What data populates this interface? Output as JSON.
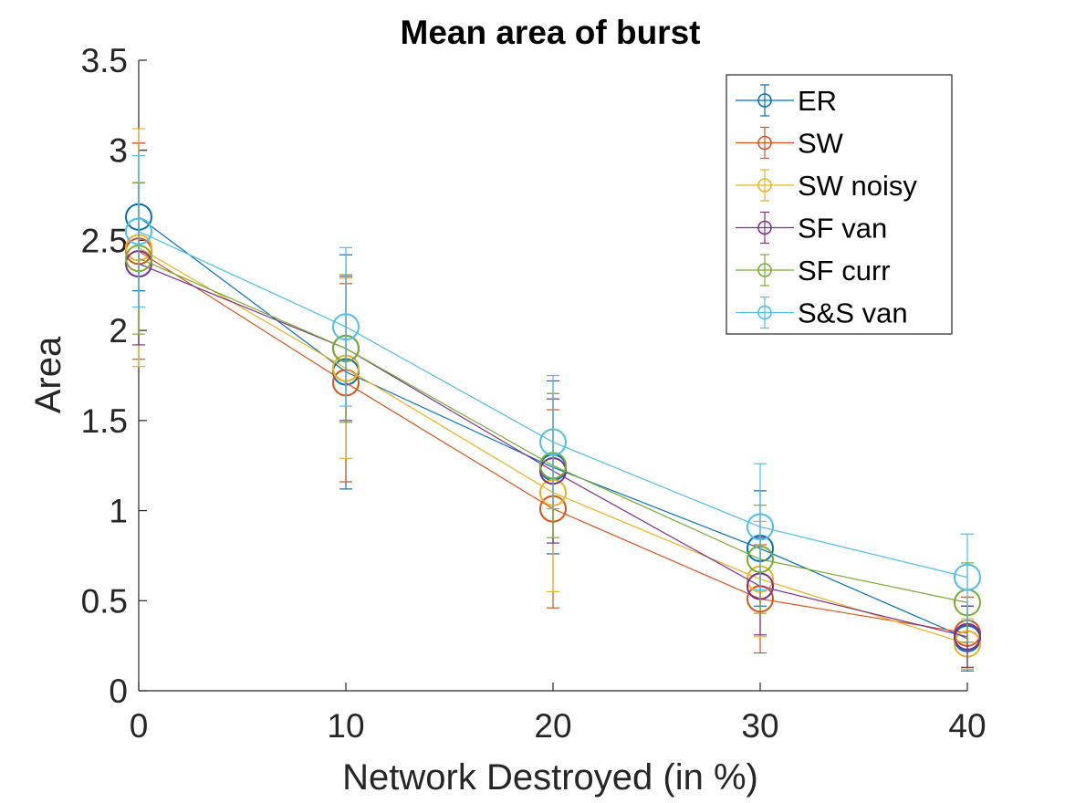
{
  "chart_data": {
    "type": "line",
    "title": "Mean area of burst",
    "xlabel": "Network Destroyed (in %)",
    "ylabel": "Area",
    "xlim": [
      0,
      40
    ],
    "ylim": [
      0,
      3.5
    ],
    "x": [
      0,
      10,
      20,
      30,
      40
    ],
    "xticks": [
      "0",
      "10",
      "20",
      "30",
      "40"
    ],
    "yticks": [
      "0",
      "0.5",
      "1",
      "1.5",
      "2",
      "2.5",
      "3",
      "3.5"
    ],
    "grid": false,
    "legend_position": "top-right",
    "marker": "circle",
    "error_bars": true,
    "series": [
      {
        "name": "ER",
        "color": "#0072BD",
        "values": [
          2.63,
          1.77,
          1.24,
          0.79,
          0.29
        ],
        "errors": [
          0.41,
          0.65,
          0.48,
          0.32,
          0.18
        ]
      },
      {
        "name": "SW",
        "color": "#D95319",
        "values": [
          2.44,
          1.71,
          1.01,
          0.51,
          0.32
        ],
        "errors": [
          0.6,
          0.55,
          0.55,
          0.3,
          0.2
        ]
      },
      {
        "name": "SW noisy",
        "color": "#EDB120",
        "values": [
          2.46,
          1.79,
          1.1,
          0.62,
          0.26
        ],
        "errors": [
          0.66,
          0.5,
          0.55,
          0.32,
          0.14
        ]
      },
      {
        "name": "SF van",
        "color": "#7E2F8E",
        "values": [
          2.37,
          1.9,
          1.22,
          0.58,
          0.3
        ],
        "errors": [
          0.45,
          0.4,
          0.4,
          0.27,
          0.17
        ]
      },
      {
        "name": "SF curr",
        "color": "#77AC30",
        "values": [
          2.4,
          1.9,
          1.25,
          0.73,
          0.49
        ],
        "errors": [
          0.42,
          0.41,
          0.4,
          0.3,
          0.22
        ]
      },
      {
        "name": "S&S van",
        "color": "#4DBEEE",
        "values": [
          2.55,
          2.02,
          1.38,
          0.91,
          0.63
        ],
        "errors": [
          0.42,
          0.44,
          0.37,
          0.35,
          0.24
        ]
      }
    ]
  }
}
